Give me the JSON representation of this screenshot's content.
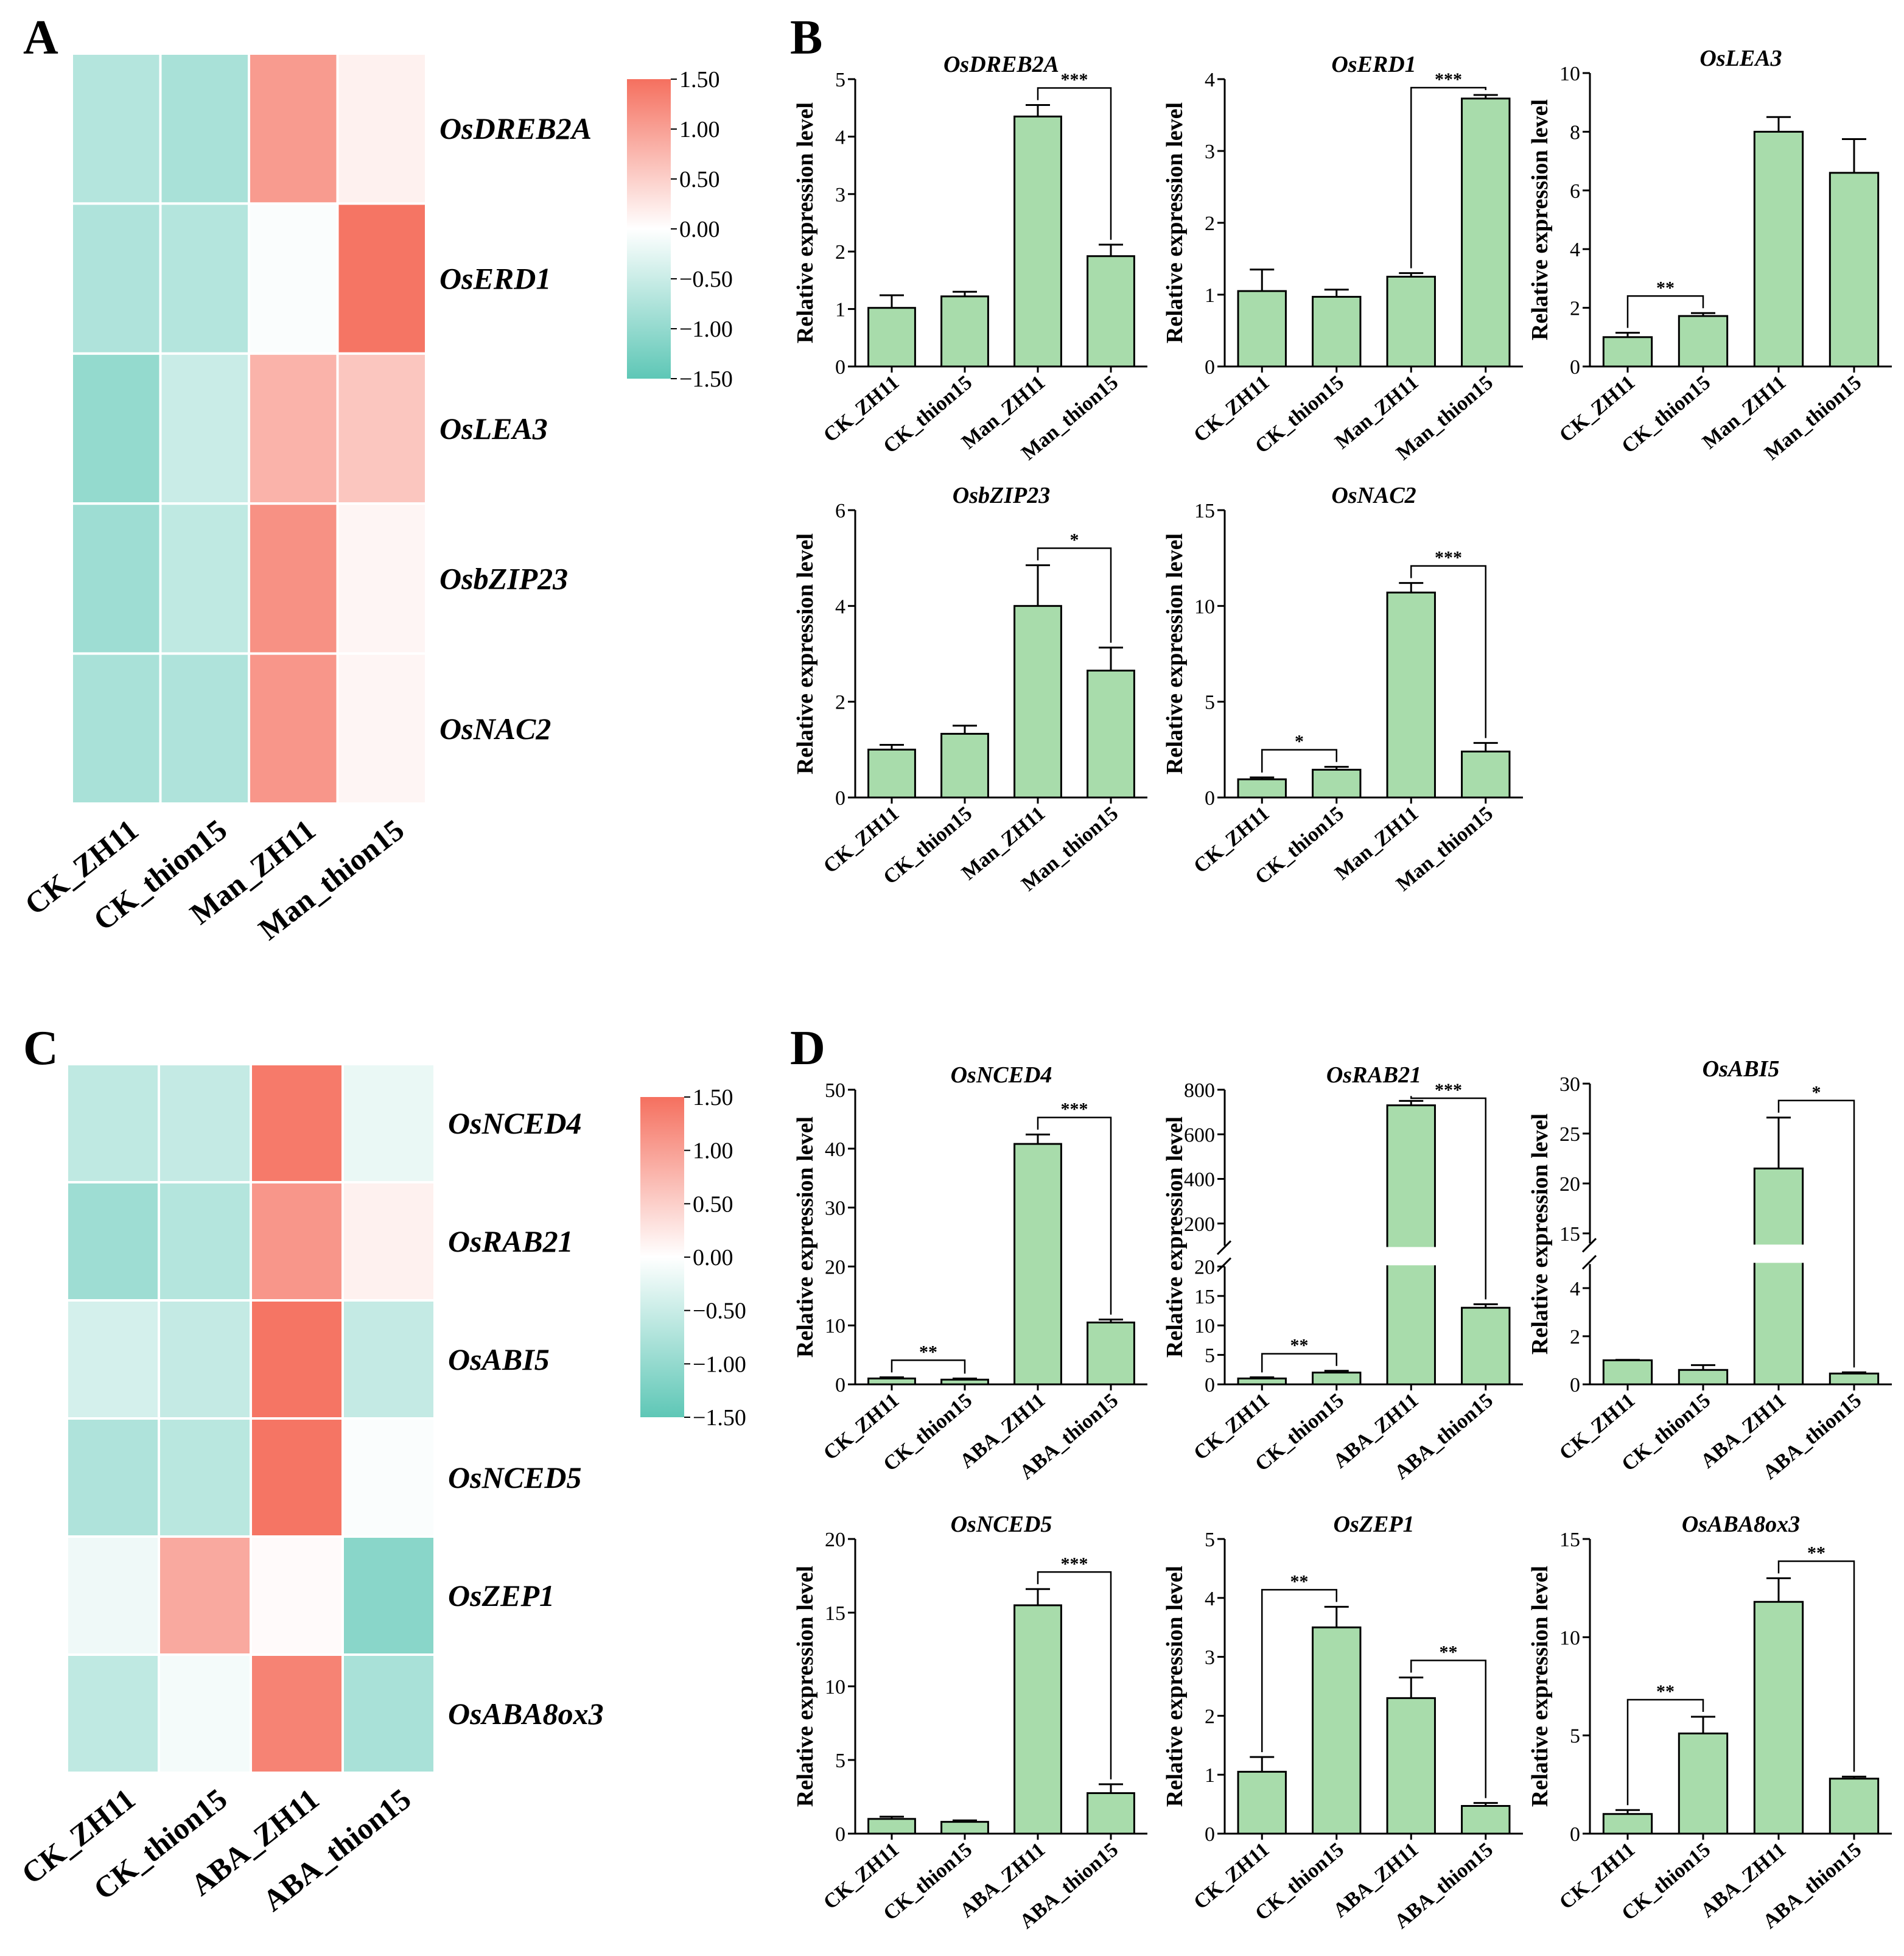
{
  "panels": {
    "A": "A",
    "B": "B",
    "C": "C",
    "D": "D"
  },
  "colors": {
    "bar_fill": "#a8dcab",
    "bar_stroke": "#000000",
    "heat_low": "#5ec7b6",
    "heat_mid": "#ffffff",
    "heat_high": "#f5705f"
  },
  "heatmaps": [
    {
      "id": "A",
      "columns": [
        "CK_ZH11",
        "CK_thion15",
        "Man_ZH11",
        "Man_thion15"
      ],
      "rows": [
        "OsDREB2A",
        "OsERD1",
        "OsLEA3",
        "OsbZIP23",
        "OsNAC2"
      ],
      "values": [
        [
          -0.7,
          -0.8,
          1.05,
          0.15
        ],
        [
          -0.75,
          -0.7,
          -0.05,
          1.45
        ],
        [
          -1.0,
          -0.5,
          0.8,
          0.6
        ],
        [
          -0.9,
          -0.6,
          1.15,
          0.1
        ],
        [
          -0.8,
          -0.75,
          1.1,
          0.1
        ]
      ],
      "colorbar": {
        "min": -1.5,
        "max": 1.5,
        "ticks": [
          "1.50",
          "1.00",
          "0.50",
          "0.00",
          "−0.50",
          "−1.00",
          "−1.50"
        ]
      }
    },
    {
      "id": "C",
      "columns": [
        "CK_ZH11",
        "CK_thion15",
        "ABA_ZH11",
        "ABA_thion15"
      ],
      "rows": [
        "OsNCED4",
        "OsRAB21",
        "OsABI5",
        "OsNCED5",
        "OsZEP1",
        "OsABA8ox3"
      ],
      "values": [
        [
          -0.6,
          -0.55,
          1.4,
          -0.2
        ],
        [
          -0.9,
          -0.7,
          1.1,
          0.15
        ],
        [
          -0.4,
          -0.55,
          1.45,
          -0.55
        ],
        [
          -0.75,
          -0.65,
          1.45,
          -0.05
        ],
        [
          -0.15,
          0.9,
          0.05,
          -1.1
        ],
        [
          -0.6,
          -0.1,
          1.3,
          -0.8
        ]
      ],
      "colorbar": {
        "min": -1.5,
        "max": 1.5,
        "ticks": [
          "1.50",
          "1.00",
          "0.50",
          "0.00",
          "−0.50",
          "−1.00",
          "−1.50"
        ]
      }
    }
  ],
  "chart_data": [
    {
      "type": "bar",
      "panel": "B",
      "title": "OsDREB2A",
      "ylabel": "Relative expression level",
      "categories": [
        "CK_ZH11",
        "CK_thion15",
        "Man_ZH11",
        "Man_thion15"
      ],
      "values": [
        1.02,
        1.22,
        4.35,
        1.92
      ],
      "errors": [
        0.22,
        0.08,
        0.2,
        0.2
      ],
      "ylim": [
        0,
        5
      ],
      "yticks": [
        0,
        1,
        2,
        3,
        4,
        5
      ],
      "significance": [
        {
          "from": 2,
          "to": 3,
          "label": "***"
        }
      ]
    },
    {
      "type": "bar",
      "panel": "B",
      "title": "OsERD1",
      "ylabel": "Relative expression level",
      "categories": [
        "CK_ZH11",
        "CK_thion15",
        "Man_ZH11",
        "Man_thion15"
      ],
      "values": [
        1.05,
        0.97,
        1.25,
        3.73
      ],
      "errors": [
        0.3,
        0.1,
        0.05,
        0.05
      ],
      "ylim": [
        0,
        4
      ],
      "yticks": [
        0,
        1,
        2,
        3,
        4
      ],
      "significance": [
        {
          "from": 2,
          "to": 3,
          "label": "***"
        }
      ]
    },
    {
      "type": "bar",
      "panel": "B",
      "title": "OsLEA3",
      "ylabel": "Relative expression level",
      "categories": [
        "CK_ZH11",
        "CK_thion15",
        "Man_ZH11",
        "Man_thion15"
      ],
      "values": [
        1.0,
        1.72,
        8.0,
        6.6
      ],
      "errors": [
        0.15,
        0.1,
        0.5,
        1.15
      ],
      "ylim": [
        0,
        10
      ],
      "yticks": [
        0,
        2,
        4,
        6,
        8,
        10
      ],
      "significance": [
        {
          "from": 0,
          "to": 1,
          "label": "**"
        }
      ]
    },
    {
      "type": "bar",
      "panel": "B",
      "title": "OsbZIP23",
      "ylabel": "Relative expression level",
      "categories": [
        "CK_ZH11",
        "CK_thion15",
        "Man_ZH11",
        "Man_thion15"
      ],
      "values": [
        1.0,
        1.33,
        4.0,
        2.65
      ],
      "errors": [
        0.1,
        0.17,
        0.85,
        0.48
      ],
      "ylim": [
        0,
        6
      ],
      "yticks": [
        0,
        2,
        4,
        6
      ],
      "significance": [
        {
          "from": 2,
          "to": 3,
          "label": "*"
        }
      ]
    },
    {
      "type": "bar",
      "panel": "B",
      "title": "OsNAC2",
      "ylabel": "Relative expression level",
      "categories": [
        "CK_ZH11",
        "CK_thion15",
        "Man_ZH11",
        "Man_thion15"
      ],
      "values": [
        0.95,
        1.45,
        10.7,
        2.4
      ],
      "errors": [
        0.1,
        0.15,
        0.5,
        0.45
      ],
      "ylim": [
        0,
        15
      ],
      "yticks": [
        0,
        5,
        10,
        15
      ],
      "significance": [
        {
          "from": 0,
          "to": 1,
          "label": "*"
        },
        {
          "from": 2,
          "to": 3,
          "label": "***"
        }
      ]
    },
    {
      "type": "bar",
      "panel": "D",
      "title": "OsNCED4",
      "ylabel": "Relative expression level",
      "categories": [
        "CK_ZH11",
        "CK_thion15",
        "ABA_ZH11",
        "ABA_thion15"
      ],
      "values": [
        1.0,
        0.8,
        40.8,
        10.5
      ],
      "errors": [
        0.2,
        0.2,
        1.6,
        0.5
      ],
      "ylim": [
        0,
        50
      ],
      "yticks": [
        0,
        10,
        20,
        30,
        40,
        50
      ],
      "significance": [
        {
          "from": 0,
          "to": 1,
          "label": "**"
        },
        {
          "from": 2,
          "to": 3,
          "label": "***"
        }
      ]
    },
    {
      "type": "bar",
      "panel": "D",
      "title": "OsRAB21",
      "ylabel": "Relative expression level",
      "categories": [
        "CK_ZH11",
        "CK_thion15",
        "ABA_ZH11",
        "ABA_thion15"
      ],
      "values": [
        1.0,
        2.0,
        730,
        13.0
      ],
      "errors": [
        0.2,
        0.3,
        20,
        0.6
      ],
      "axis_break": {
        "lower": [
          0,
          20
        ],
        "upper": [
          100,
          800
        ]
      },
      "yticks_lower": [
        0,
        5,
        10,
        15,
        20
      ],
      "yticks_upper": [
        200,
        400,
        600,
        800
      ],
      "significance": [
        {
          "from": 0,
          "to": 1,
          "label": "**"
        },
        {
          "from": 2,
          "to": 3,
          "label": "***"
        }
      ]
    },
    {
      "type": "bar",
      "panel": "D",
      "title": "OsABI5",
      "ylabel": "Relative expression level",
      "categories": [
        "CK_ZH11",
        "CK_thion15",
        "ABA_ZH11",
        "ABA_thion15"
      ],
      "values": [
        1.0,
        0.6,
        21.5,
        0.45
      ],
      "errors": [
        0.02,
        0.2,
        5.1,
        0.05
      ],
      "axis_break": {
        "lower": [
          0,
          5
        ],
        "upper": [
          14,
          30
        ]
      },
      "yticks_lower": [
        0,
        2,
        4
      ],
      "yticks_upper": [
        15,
        20,
        25,
        30
      ],
      "significance": [
        {
          "from": 2,
          "to": 3,
          "label": "*"
        }
      ]
    },
    {
      "type": "bar",
      "panel": "D",
      "title": "OsNCED5",
      "ylabel": "Relative expression level",
      "categories": [
        "CK_ZH11",
        "CK_thion15",
        "ABA_ZH11",
        "ABA_thion15"
      ],
      "values": [
        1.0,
        0.8,
        15.5,
        2.75
      ],
      "errors": [
        0.15,
        0.1,
        1.1,
        0.6
      ],
      "ylim": [
        0,
        20
      ],
      "yticks": [
        0,
        5,
        10,
        15,
        20
      ],
      "significance": [
        {
          "from": 2,
          "to": 3,
          "label": "***"
        }
      ]
    },
    {
      "type": "bar",
      "panel": "D",
      "title": "OsZEP1",
      "ylabel": "Relative expression level",
      "categories": [
        "CK_ZH11",
        "CK_thion15",
        "ABA_ZH11",
        "ABA_thion15"
      ],
      "values": [
        1.05,
        3.5,
        2.3,
        0.47
      ],
      "errors": [
        0.25,
        0.35,
        0.35,
        0.05
      ],
      "ylim": [
        0,
        5
      ],
      "yticks": [
        0,
        1,
        2,
        3,
        4,
        5
      ],
      "significance": [
        {
          "from": 0,
          "to": 1,
          "label": "**"
        },
        {
          "from": 2,
          "to": 3,
          "label": "**"
        }
      ]
    },
    {
      "type": "bar",
      "panel": "D",
      "title": "OsABA8ox3",
      "ylabel": "Relative expression level",
      "categories": [
        "CK_ZH11",
        "CK_thion15",
        "ABA_ZH11",
        "ABA_thion15"
      ],
      "values": [
        1.0,
        5.1,
        11.8,
        2.8
      ],
      "errors": [
        0.2,
        0.85,
        1.2,
        0.1
      ],
      "ylim": [
        0,
        15
      ],
      "yticks": [
        0,
        5,
        10,
        15
      ],
      "significance": [
        {
          "from": 0,
          "to": 1,
          "label": "**"
        },
        {
          "from": 2,
          "to": 3,
          "label": "**"
        }
      ]
    }
  ]
}
